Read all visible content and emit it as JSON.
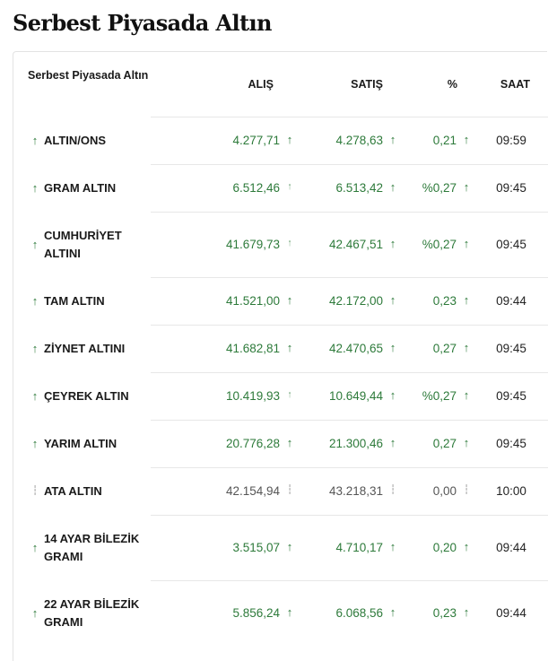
{
  "page": {
    "title": "Serbest Piyasada Altın"
  },
  "table": {
    "headers": {
      "name": "Serbest Piyasada Altın",
      "alis": "ALIŞ",
      "satis": "SATIŞ",
      "percent": "%",
      "saat": "SAAT"
    },
    "rows": [
      {
        "name": "ALTIN/ONS",
        "alis": "4.277,71",
        "satis": "4.278,63",
        "percent": "0,21",
        "saat": "09:59",
        "direction": "up",
        "alis_arrow": "up",
        "satis_arrow": "up",
        "percent_arrow": "up"
      },
      {
        "name": "GRAM ALTIN",
        "alis": "6.512,46",
        "satis": "6.513,42",
        "percent": "%0,27",
        "saat": "09:45",
        "direction": "up",
        "alis_arrow": "up-thin",
        "satis_arrow": "up",
        "percent_arrow": "up"
      },
      {
        "name": "CUMHURİYET ALTINI",
        "alis": "41.679,73",
        "satis": "42.467,51",
        "percent": "%0,27",
        "saat": "09:45",
        "direction": "up",
        "alis_arrow": "up-thin",
        "satis_arrow": "up",
        "percent_arrow": "up"
      },
      {
        "name": "TAM ALTIN",
        "alis": "41.521,00",
        "satis": "42.172,00",
        "percent": "0,23",
        "saat": "09:44",
        "direction": "up",
        "alis_arrow": "up",
        "satis_arrow": "up",
        "percent_arrow": "up"
      },
      {
        "name": "ZİYNET ALTINI",
        "alis": "41.682,81",
        "satis": "42.470,65",
        "percent": "0,27",
        "saat": "09:45",
        "direction": "up",
        "alis_arrow": "up",
        "satis_arrow": "up",
        "percent_arrow": "up"
      },
      {
        "name": "ÇEYREK ALTIN",
        "alis": "10.419,93",
        "satis": "10.649,44",
        "percent": "%0,27",
        "saat": "09:45",
        "direction": "up",
        "alis_arrow": "up-thin",
        "satis_arrow": "up",
        "percent_arrow": "up"
      },
      {
        "name": "YARIM ALTIN",
        "alis": "20.776,28",
        "satis": "21.300,46",
        "percent": "0,27",
        "saat": "09:45",
        "direction": "up",
        "alis_arrow": "up",
        "satis_arrow": "up",
        "percent_arrow": "up"
      },
      {
        "name": "ATA ALTIN",
        "alis": "42.154,94",
        "satis": "43.218,31",
        "percent": "0,00",
        "saat": "10:00",
        "direction": "flat",
        "alis_arrow": "flat",
        "satis_arrow": "flat",
        "percent_arrow": "flat"
      },
      {
        "name": "14 AYAR BİLEZİK GRAMI",
        "alis": "3.515,07",
        "satis": "4.710,17",
        "percent": "0,20",
        "saat": "09:44",
        "direction": "up",
        "alis_arrow": "up",
        "satis_arrow": "up",
        "percent_arrow": "up"
      },
      {
        "name": "22 AYAR BİLEZİK GRAMI",
        "alis": "5.856,24",
        "satis": "6.068,56",
        "percent": "0,23",
        "saat": "09:44",
        "direction": "up",
        "alis_arrow": "up",
        "satis_arrow": "up",
        "percent_arrow": "up"
      }
    ]
  },
  "icons": {
    "up": "arrow-up-icon",
    "flat": "unchanged-icon"
  },
  "colors": {
    "up": "#2d7a3a",
    "neutral": "#555555",
    "text": "#1a1a1a",
    "divider": "#e7e7e7"
  }
}
